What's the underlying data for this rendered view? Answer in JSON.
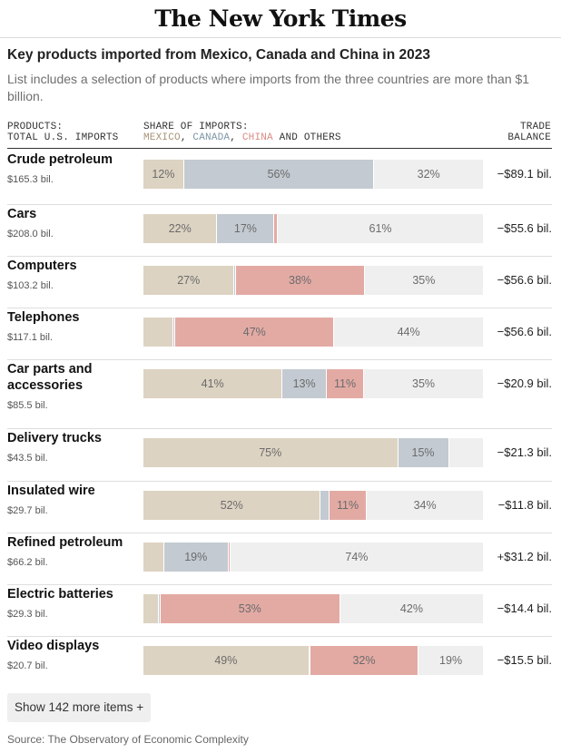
{
  "masthead": "The New York Times",
  "title": "Key products imported from Mexico, Canada and China in 2023",
  "subtitle": "List includes a selection of products where imports from the three countries are more than $1 billion.",
  "headers": {
    "products_line1": "PRODUCTS:",
    "products_line2": "TOTAL U.S. IMPORTS",
    "share_line1": "SHARE OF IMPORTS:",
    "mexico": "MEXICO",
    "sep1": ", ",
    "canada": "CANADA",
    "sep2": ", ",
    "china": "CHINA",
    "others": " AND OTHERS",
    "balance_line1": "TRADE",
    "balance_line2": "BALANCE"
  },
  "colors": {
    "mexico": "#ddd3c2",
    "canada": "#c3cad1",
    "china": "#e3aaa4",
    "others": "#efefef",
    "mexico_label": "#a8957a",
    "canada_label": "#7f95a6",
    "china_label": "#d88c84"
  },
  "chart_data": {
    "type": "bar",
    "orientation": "horizontal-stacked-100",
    "title": "Key products imported from Mexico, Canada and China in 2023",
    "series_names": [
      "Mexico",
      "Canada",
      "China",
      "Others"
    ],
    "rows": [
      {
        "product": "Crude petroleum",
        "total": "$165.3 bil.",
        "mexico": 12,
        "canada": 56,
        "china": 0,
        "others": 32,
        "labels": [
          "12%",
          "56%",
          "",
          "32%"
        ],
        "balance": "−$89.1 bil."
      },
      {
        "product": "Cars",
        "total": "$208.0 bil.",
        "mexico": 22,
        "canada": 17,
        "china": 1,
        "others": 61,
        "labels": [
          "22%",
          "17%",
          "",
          "61%"
        ],
        "balance": "−$55.6 bil."
      },
      {
        "product": "Computers",
        "total": "$103.2 bil.",
        "mexico": 27,
        "canada": 0.5,
        "china": 38,
        "others": 35,
        "labels": [
          "27%",
          "",
          "38%",
          "35%"
        ],
        "balance": "−$56.6 bil."
      },
      {
        "product": "Telephones",
        "total": "$117.1 bil.",
        "mexico": 9,
        "canada": 0.5,
        "china": 47,
        "others": 44,
        "labels": [
          "",
          "",
          "47%",
          "44%"
        ],
        "balance": "−$56.6 bil."
      },
      {
        "product": "Car parts and accessories",
        "total": "$85.5 bil.",
        "mexico": 41,
        "canada": 13,
        "china": 11,
        "others": 35,
        "labels": [
          "41%",
          "13%",
          "11%",
          "35%"
        ],
        "balance": "−$20.9 bil."
      },
      {
        "product": "Delivery trucks",
        "total": "$43.5 bil.",
        "mexico": 75,
        "canada": 15,
        "china": 0,
        "others": 10,
        "labels": [
          "75%",
          "15%",
          "",
          ""
        ],
        "balance": "−$21.3 bil."
      },
      {
        "product": "Insulated wire",
        "total": "$29.7 bil.",
        "mexico": 52,
        "canada": 2.5,
        "china": 11,
        "others": 34,
        "labels": [
          "52%",
          "",
          "11%",
          "34%"
        ],
        "balance": "−$11.8 bil."
      },
      {
        "product": "Refined petroleum",
        "total": "$66.2 bil.",
        "mexico": 6,
        "canada": 19,
        "china": 0.5,
        "others": 74,
        "labels": [
          "",
          "19%",
          "",
          "74%"
        ],
        "balance": "+$31.2 bil."
      },
      {
        "product": "Electric batteries",
        "total": "$29.3 bil.",
        "mexico": 4.5,
        "canada": 0.5,
        "china": 53,
        "others": 42,
        "labels": [
          "",
          "",
          "53%",
          "42%"
        ],
        "balance": "−$14.4 bil."
      },
      {
        "product": "Video displays",
        "total": "$20.7 bil.",
        "mexico": 49,
        "canada": 0.3,
        "china": 32,
        "others": 19,
        "labels": [
          "49%",
          "",
          "32%",
          "19%"
        ],
        "balance": "−$15.5 bil."
      }
    ]
  },
  "more_button": "Show 142 more items +",
  "source": "Source: The Observatory of Economic Complexity"
}
